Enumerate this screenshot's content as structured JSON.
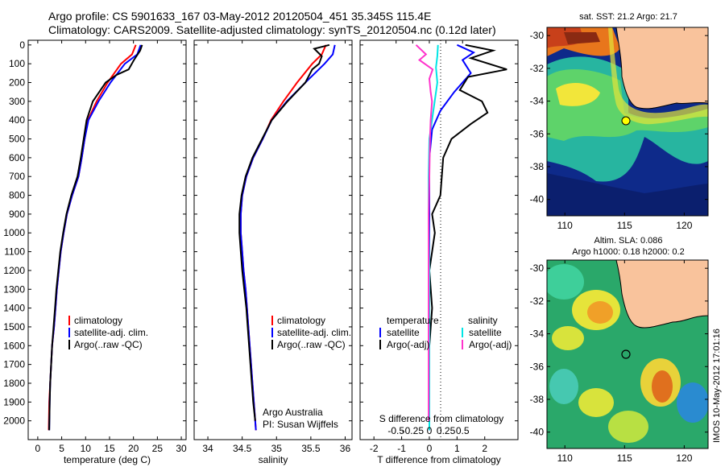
{
  "title": {
    "line1": "Argo profile: CS 5901633_167 03-May-2012 20120504_451 35.345S 115.4E",
    "line2": "Climatology: CARS2009. Satellite-adjusted climatology: synTS_20120504.nc (0.12d later)"
  },
  "depth_ticks": [
    0,
    100,
    200,
    300,
    400,
    500,
    600,
    700,
    800,
    900,
    1000,
    1100,
    1200,
    1300,
    1400,
    1500,
    1600,
    1700,
    1800,
    1900,
    2000
  ],
  "panels": {
    "temperature": {
      "xlabel": "temperature (deg C)",
      "xticks": [
        "0",
        "5",
        "10",
        "15",
        "20",
        "25",
        "30"
      ],
      "legend": [
        "climatology",
        "satellite-adj. clim.",
        "Argo(..raw -QC)"
      ]
    },
    "salinity": {
      "xlabel": "salinity",
      "xticks": [
        "34",
        "34.5",
        "35",
        "35.5",
        "36"
      ],
      "legend": [
        "climatology",
        "satellite-adj. clim.",
        "Argo(..raw -QC)"
      ],
      "note1": "Argo Australia",
      "note2": "PI: Susan Wijffels"
    },
    "difference": {
      "s_label": "S difference from climatology",
      "t_label": "T difference from climatology",
      "s_ticks": [
        "-0.5",
        "-0.25",
        "0",
        "0.25",
        "0.5"
      ],
      "t_ticks": [
        "-2",
        "-1",
        "0",
        "1",
        "2"
      ],
      "legend_temp_title": "temperature",
      "legend_sal_title": "salinity",
      "legend_temp": [
        "satellite",
        "Argo(-adj)"
      ],
      "legend_sal": [
        "satellite",
        "Argo(-adj)"
      ]
    }
  },
  "maps": {
    "sst_title": "sat. SST: 21.2  Argo: 21.7",
    "sla_title1": "Altim. SLA: 0.086",
    "sla_title2": "Argo h1000: 0.18  h2000: 0.2",
    "lat_ticks": [
      "-30",
      "-32",
      "-34",
      "-36",
      "-38",
      "-40"
    ],
    "lon_ticks": [
      "110",
      "115",
      "120"
    ]
  },
  "side_label": "IMOS 10-May-2012 17:01:16",
  "colors": {
    "climatology": "#ff0000",
    "satellite": "#0000ff",
    "argo": "#000000",
    "sat_sal": "#00e5e5",
    "argo_sal": "#ff33cc",
    "land": "#f9c39c"
  },
  "chart_data": [
    {
      "type": "line",
      "title": "",
      "xlabel": "temperature (deg C)",
      "ylabel": "",
      "xlim": [
        -2,
        31
      ],
      "ylim": [
        2100,
        0
      ],
      "series": [
        {
          "name": "climatology",
          "x": [
            20.5,
            19.7,
            17.4,
            14.6,
            12.3,
            10.5,
            9.8,
            9.2,
            8.5,
            7.2,
            6.1,
            5.4,
            4.8,
            4.4,
            4.0,
            3.7,
            3.4,
            3.0,
            2.8,
            2.6,
            2.4,
            2.3
          ],
          "y": [
            0,
            50,
            100,
            200,
            300,
            400,
            500,
            600,
            700,
            800,
            900,
            1000,
            1100,
            1200,
            1300,
            1400,
            1500,
            1600,
            1700,
            1800,
            1900,
            2050
          ]
        },
        {
          "name": "satellite-adj. clim.",
          "x": [
            21.5,
            20.8,
            18.2,
            15.2,
            12.7,
            10.6,
            9.8,
            9.2,
            8.5,
            7.2,
            6.1,
            5.4,
            4.8,
            4.4,
            4.0,
            3.7,
            3.4,
            3.0,
            2.8,
            2.6,
            2.5,
            2.4
          ],
          "y": [
            0,
            50,
            100,
            200,
            300,
            400,
            500,
            600,
            700,
            800,
            900,
            1000,
            1100,
            1200,
            1300,
            1400,
            1500,
            1600,
            1700,
            1800,
            1900,
            2050
          ]
        },
        {
          "name": "Argo(..raw -QC)",
          "x": [
            21.8,
            21.4,
            20.1,
            19.0,
            16.4,
            14.2,
            11.5,
            10.2,
            9.6,
            9.0,
            8.3,
            7.0,
            6.0,
            5.3,
            4.7,
            4.3,
            3.9,
            3.6,
            3.3,
            3.0,
            2.8,
            2.6,
            2.5,
            2.4
          ],
          "y": [
            0,
            30,
            80,
            130,
            160,
            200,
            300,
            400,
            500,
            600,
            700,
            800,
            900,
            1000,
            1100,
            1200,
            1300,
            1400,
            1500,
            1600,
            1700,
            1800,
            1900,
            2050
          ]
        }
      ]
    },
    {
      "type": "line",
      "title": "",
      "xlabel": "salinity",
      "ylabel": "",
      "xlim": [
        33.8,
        36.1
      ],
      "ylim": [
        2100,
        0
      ],
      "series": [
        {
          "name": "climatology",
          "x": [
            35.72,
            35.66,
            35.52,
            35.3,
            35.1,
            34.92,
            34.8,
            34.66,
            34.56,
            34.5,
            34.48,
            34.48,
            34.5,
            34.52,
            34.55,
            34.57,
            34.59,
            34.61,
            34.63,
            34.65,
            34.67,
            34.7
          ],
          "y": [
            0,
            50,
            100,
            200,
            300,
            400,
            500,
            600,
            700,
            800,
            900,
            1000,
            1100,
            1200,
            1300,
            1400,
            1500,
            1600,
            1700,
            1800,
            1900,
            2050
          ]
        },
        {
          "name": "satellite-adj. clim.",
          "x": [
            35.85,
            35.82,
            35.7,
            35.42,
            35.15,
            34.93,
            34.8,
            34.66,
            34.56,
            34.5,
            34.48,
            34.48,
            34.5,
            34.52,
            34.55,
            34.57,
            34.59,
            34.61,
            34.63,
            34.65,
            34.67,
            34.7
          ],
          "y": [
            0,
            50,
            100,
            200,
            300,
            400,
            500,
            600,
            700,
            800,
            900,
            1000,
            1100,
            1200,
            1300,
            1400,
            1500,
            1600,
            1700,
            1800,
            1900,
            2050
          ]
        },
        {
          "name": "Argo(..raw -QC)",
          "x": [
            35.77,
            35.55,
            35.66,
            35.62,
            35.52,
            35.42,
            35.16,
            34.93,
            34.79,
            34.65,
            34.55,
            34.49,
            34.46,
            34.46,
            34.48,
            34.5,
            34.53,
            34.56,
            34.58,
            34.6,
            34.62,
            34.64,
            34.66,
            34.69
          ],
          "y": [
            0,
            20,
            60,
            100,
            130,
            200,
            300,
            400,
            500,
            600,
            700,
            800,
            900,
            1000,
            1100,
            1200,
            1300,
            1400,
            1500,
            1600,
            1700,
            1800,
            1900,
            2000
          ]
        }
      ]
    },
    {
      "type": "line",
      "title": "",
      "xlabel": "T difference from climatology",
      "ylabel": "",
      "xlim": [
        -2.5,
        3.2
      ],
      "ylim": [
        2100,
        0
      ],
      "series": [
        {
          "name": "temperature satellite",
          "axis": "T",
          "x": [
            1.0,
            1.6,
            1.2,
            1.5,
            0.9,
            0.4,
            0.1,
            0.0,
            0.0,
            0.0,
            0.0,
            0.0,
            0.0,
            0.0,
            0.0
          ],
          "y": [
            0,
            40,
            80,
            150,
            250,
            350,
            450,
            600,
            800,
            1000,
            1200,
            1400,
            1600,
            1800,
            2050
          ]
        },
        {
          "name": "temperature Argo(-adj)",
          "axis": "T",
          "x": [
            1.3,
            2.3,
            1.5,
            2.8,
            1.4,
            1.1,
            1.9,
            2.1,
            1.5,
            0.8,
            0.5,
            0.4,
            0.1,
            0.2,
            0.0,
            0.1,
            0.0,
            0.0,
            0.0
          ],
          "y": [
            0,
            30,
            70,
            130,
            170,
            240,
            300,
            360,
            420,
            500,
            600,
            800,
            900,
            1000,
            1200,
            1400,
            1600,
            1800,
            2000
          ]
        },
        {
          "name": "salinity satellite",
          "axis": "S",
          "x": [
            0.13,
            0.12,
            0.1,
            0.12,
            0.08,
            0.04,
            0.0,
            -0.01,
            -0.01,
            0.0,
            0.0,
            0.0
          ],
          "y": [
            0,
            60,
            120,
            200,
            300,
            400,
            500,
            700,
            900,
            1200,
            1600,
            2050
          ]
        },
        {
          "name": "salinity Argo(-adj)",
          "axis": "S",
          "x": [
            -0.2,
            -0.05,
            -0.15,
            0.05,
            0.0,
            0.02,
            0.04,
            0.02,
            0.01,
            0.0,
            -0.01,
            -0.01,
            -0.01,
            -0.01
          ],
          "y": [
            0,
            50,
            80,
            130,
            180,
            250,
            300,
            400,
            500,
            700,
            900,
            1200,
            1600,
            2000
          ]
        }
      ]
    }
  ]
}
